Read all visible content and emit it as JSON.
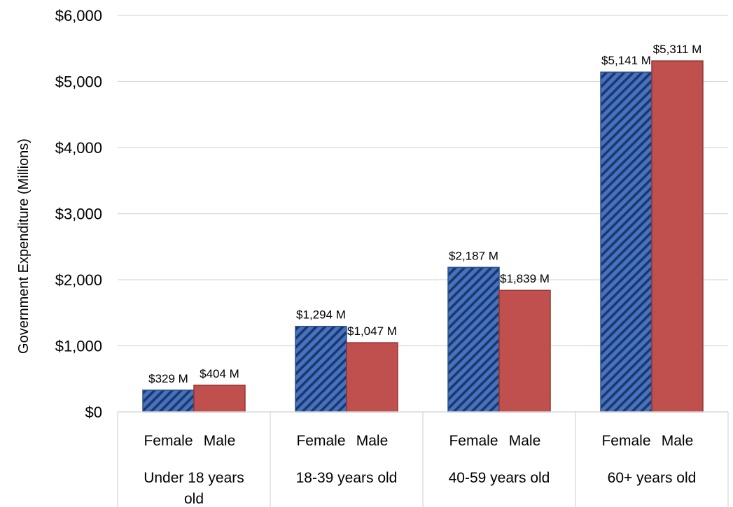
{
  "chart_data": {
    "type": "bar",
    "title": "",
    "ylabel": "Government Expenditure (Millions)",
    "ylim": [
      0,
      6000
    ],
    "yticks": [
      0,
      1000,
      2000,
      3000,
      4000,
      5000,
      6000
    ],
    "ytick_labels": [
      "$0",
      "$1,000",
      "$2,000",
      "$3,000",
      "$4,000",
      "$5,000",
      "$6,000"
    ],
    "grid": true,
    "categories": [
      "Under 18 years old",
      "18-39 years old",
      "40-59 years old",
      "60+ years old"
    ],
    "series": [
      {
        "name": "Female",
        "color": "#4472C4",
        "pattern": "diagonal-stripes",
        "values": [
          329,
          1294,
          2187,
          5141
        ],
        "labels": [
          "$329 M",
          "$1,294 M",
          "$2,187 M",
          "$5,141 M"
        ]
      },
      {
        "name": "Male",
        "color": "#C0504D",
        "values": [
          404,
          1047,
          1839,
          5311
        ],
        "labels": [
          "$404 M",
          "$1,047 M",
          "$1,839 M",
          "$5,311 M"
        ]
      }
    ]
  }
}
